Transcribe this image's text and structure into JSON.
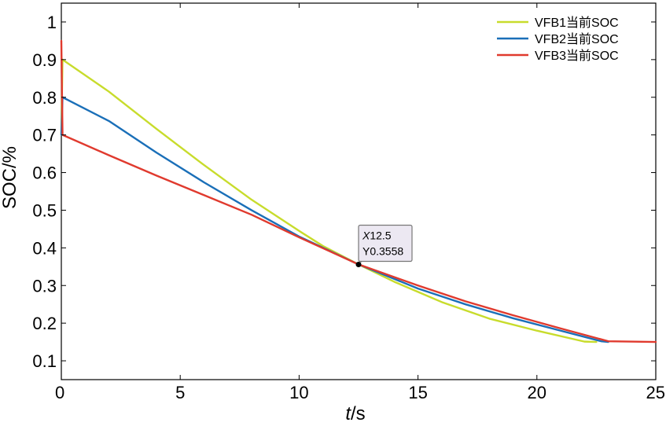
{
  "chart_data": {
    "type": "line",
    "xlabel": {
      "var": "t",
      "unit": "/s"
    },
    "ylabel": "SOC/%",
    "xlim": [
      0,
      25
    ],
    "ylim": [
      0.05,
      1.05
    ],
    "x_ticks": [
      0,
      5,
      10,
      15,
      20,
      25
    ],
    "y_ticks": [
      0.1,
      0.2,
      0.3,
      0.4,
      0.5,
      0.6,
      0.7,
      0.8,
      0.9,
      1
    ],
    "x_tick_labels": [
      "0",
      "5",
      "10",
      "15",
      "20",
      "25"
    ],
    "y_tick_labels": [
      "0.1",
      "0.2",
      "0.3",
      "0.4",
      "0.5",
      "0.6",
      "0.7",
      "0.8",
      "0.9",
      "1"
    ],
    "grid": false,
    "legend": "top-right",
    "series": [
      {
        "name": "VFB1当前SOC",
        "color": "#c8dc2c",
        "x": [
          0,
          0.05,
          2,
          4,
          6,
          8,
          10,
          11,
          12.5,
          14,
          15,
          16,
          18,
          20,
          22,
          22.5
        ],
        "y": [
          0.7,
          0.9,
          0.815,
          0.716,
          0.62,
          0.528,
          0.445,
          0.405,
          0.356,
          0.31,
          0.283,
          0.256,
          0.212,
          0.18,
          0.151,
          0.15
        ]
      },
      {
        "name": "VFB2当前SOC",
        "color": "#1a6fb8",
        "x": [
          0,
          0.05,
          2,
          4,
          6,
          8,
          10,
          12.5,
          15,
          17,
          19,
          21,
          22.7,
          23
        ],
        "y": [
          0.7,
          0.8,
          0.737,
          0.653,
          0.574,
          0.5,
          0.43,
          0.356,
          0.292,
          0.25,
          0.213,
          0.18,
          0.152,
          0.15
        ]
      },
      {
        "name": "VFB3当前SOC",
        "color": "#e03a2e",
        "x": [
          0,
          0.05,
          2,
          4,
          6,
          8,
          10,
          12.5,
          15,
          17,
          19,
          21,
          23,
          25
        ],
        "y": [
          0.95,
          0.7,
          0.646,
          0.592,
          0.54,
          0.488,
          0.428,
          0.356,
          0.3,
          0.258,
          0.221,
          0.186,
          0.152,
          0.15
        ]
      }
    ],
    "annotation": {
      "x": 12.5,
      "y": 0.3558,
      "x_prefix": "X",
      "x_text": "12.5",
      "y_prefix": "Y",
      "y_text": "0.3558"
    }
  }
}
